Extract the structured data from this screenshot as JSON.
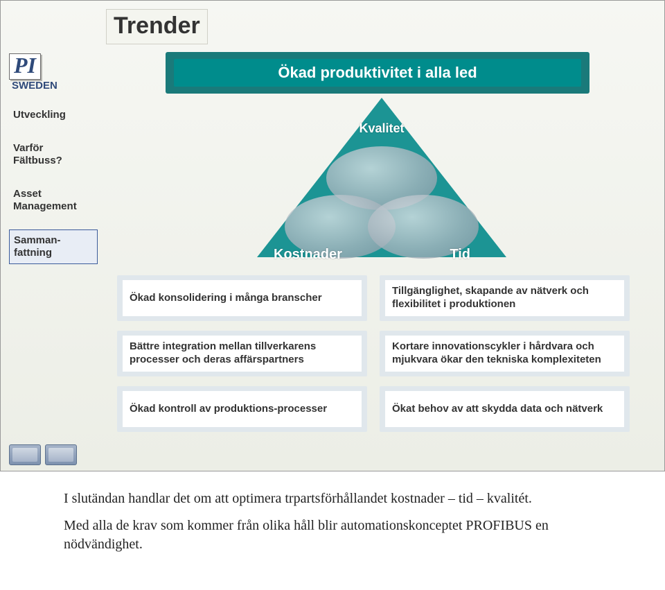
{
  "title": "Trender",
  "logo": {
    "pi": "PI",
    "sweden": "SWEDEN"
  },
  "sidebar": {
    "items": [
      {
        "label": "Utveckling",
        "boxed": false
      },
      {
        "label": "Varför Fältbuss?",
        "boxed": false
      },
      {
        "label": "Asset Management",
        "boxed": false
      },
      {
        "label": "Samman-fattning",
        "boxed": true
      }
    ]
  },
  "banner": {
    "label": "Ökad produktivitet i alla led",
    "shadow_color": "#1a7a7a",
    "front_color": "#008c8c",
    "text_color": "#ffffff",
    "font_size": 22
  },
  "triangle": {
    "fill": "#1c9494",
    "ellipse_gradient": [
      "#dfe4e8",
      "#aab6bf",
      "#8796a3"
    ],
    "labels": {
      "top": "Kvalitet",
      "left": "Kostnader",
      "right": "Tid"
    },
    "label_color": "#ffffff",
    "label_fontsize": 20
  },
  "info_boxes": {
    "back_color": "#e0e7ec",
    "front_color": "#ffffff",
    "text_color": "#333333",
    "font_size": 15,
    "items": [
      "Ökad konsolidering i många branscher",
      "Tillgänglighet, skapande av nätverk och flexibilitet i produktionen",
      "Bättre integration mellan tillverkarens processer och deras affärspartners",
      "Kortare innovationscykler i hårdvara och mjukvara ökar den tekniska komplexiteten",
      "Ökad kontroll av produktions-processer",
      "Ökat behov av att skydda data och nätverk"
    ]
  },
  "footer": {
    "p1": "I slutändan handlar det om att optimera trpartsförhållandet kostnader – tid – kvalitét.",
    "p2": "Med alla de krav som kommer från olika håll blir automationskonceptet PROFIBUS en nödvändighet."
  },
  "colors": {
    "slide_bg": "#f2f2ef",
    "border": "#999999"
  }
}
